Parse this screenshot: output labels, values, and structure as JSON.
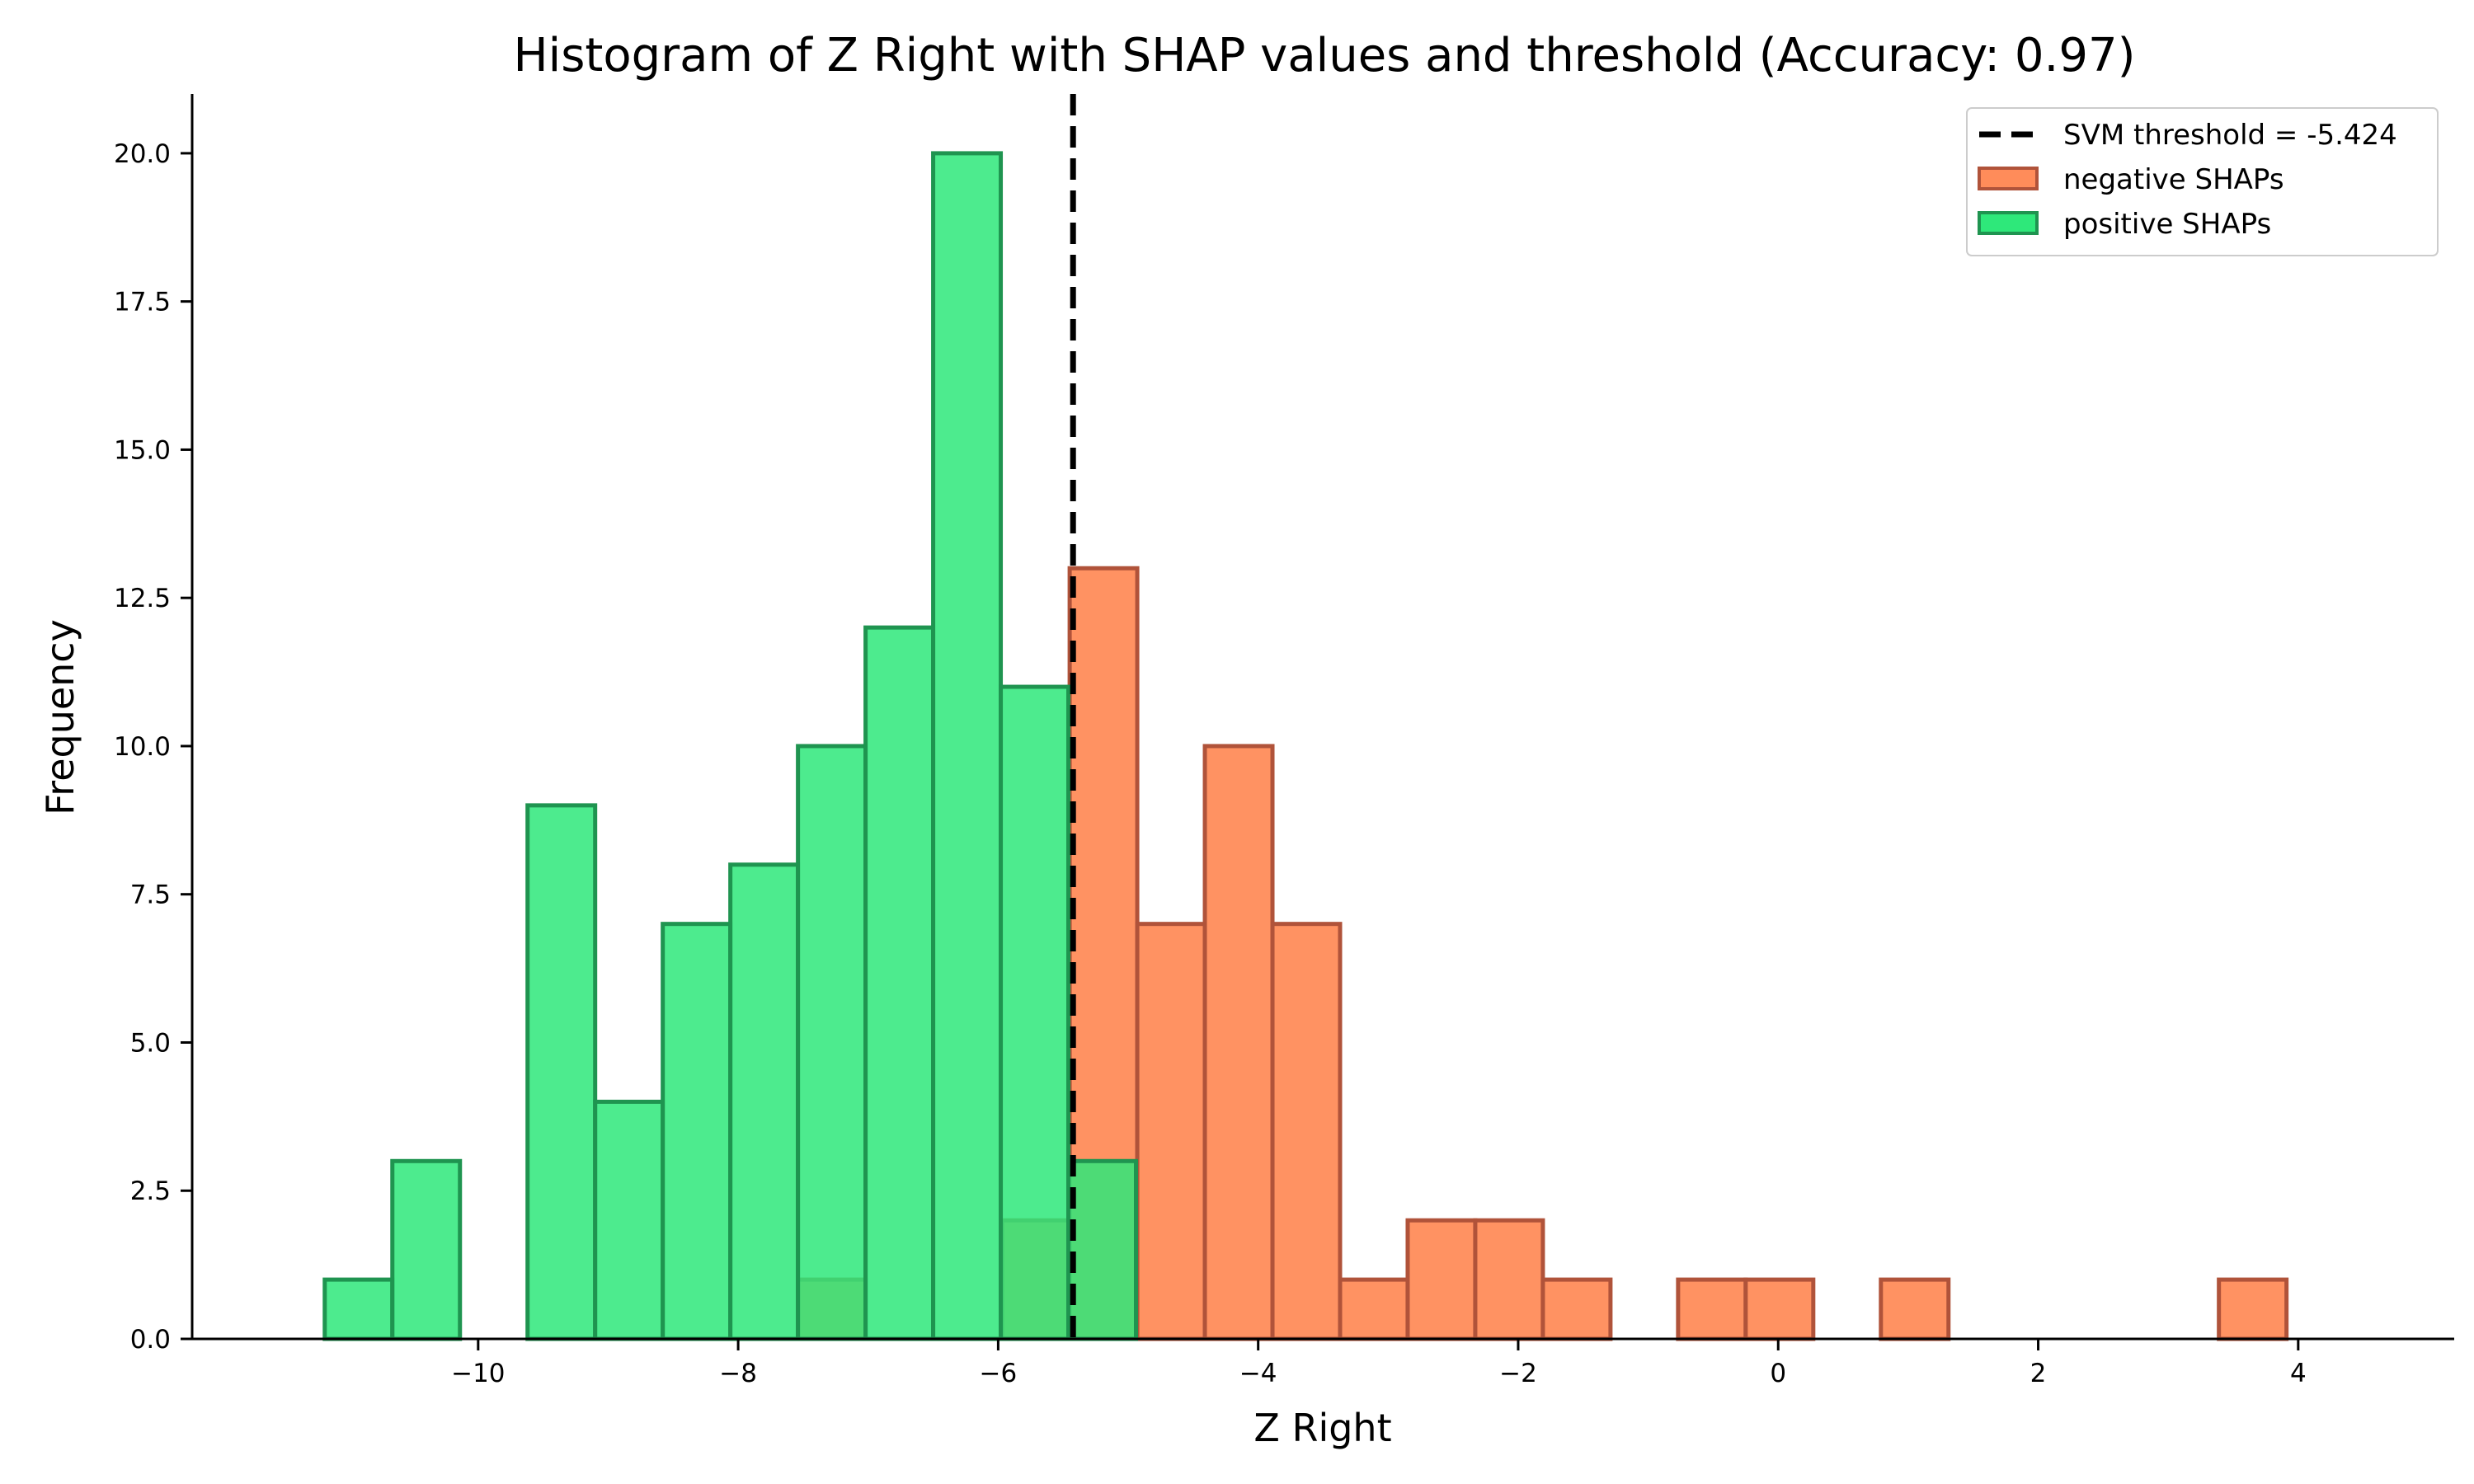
{
  "chart_data": {
    "type": "bar",
    "title": "Histogram of Z Right with SHAP values and threshold (Accuracy: 0.97)",
    "xlabel": "Z Right",
    "ylabel": "Frequency",
    "xlim": [
      -12.2,
      5.2
    ],
    "ylim": [
      0,
      21
    ],
    "x_ticks": [
      -10,
      -8,
      -6,
      -4,
      -2,
      0,
      2,
      4
    ],
    "x_tick_labels": [
      "−10",
      "−8",
      "−6",
      "−4",
      "−2",
      "0",
      "2",
      "4"
    ],
    "y_ticks": [
      0,
      2.5,
      5,
      7.5,
      10,
      12.5,
      15,
      17.5,
      20
    ],
    "y_tick_labels": [
      "0.0",
      "2.5",
      "5.0",
      "7.5",
      "10.0",
      "12.5",
      "15.0",
      "17.5",
      "20.0"
    ],
    "grid": false,
    "legend_position": "top-right",
    "threshold": {
      "value": -5.424,
      "label": "SVM threshold = -5.424",
      "color": "#000000",
      "style": "dashed"
    },
    "series": [
      {
        "name": "negative SHAPs",
        "fill": "#ff8c5a",
        "edge": "#b0533a",
        "bins": [
          {
            "x0": -7.54,
            "x1": -7.02,
            "count": 1
          },
          {
            "x0": -5.97,
            "x1": -5.45,
            "count": 2
          },
          {
            "x0": -5.45,
            "x1": -4.93,
            "count": 13
          },
          {
            "x0": -4.93,
            "x1": -4.41,
            "count": 7
          },
          {
            "x0": -4.41,
            "x1": -3.89,
            "count": 10
          },
          {
            "x0": -3.89,
            "x1": -3.37,
            "count": 7
          },
          {
            "x0": -3.37,
            "x1": -2.85,
            "count": 1
          },
          {
            "x0": -2.85,
            "x1": -2.33,
            "count": 2
          },
          {
            "x0": -2.33,
            "x1": -1.81,
            "count": 2
          },
          {
            "x0": -1.81,
            "x1": -1.29,
            "count": 1
          },
          {
            "x0": -0.77,
            "x1": -0.25,
            "count": 1
          },
          {
            "x0": -0.25,
            "x1": 0.27,
            "count": 1
          },
          {
            "x0": 0.79,
            "x1": 1.31,
            "count": 1
          },
          {
            "x0": 3.39,
            "x1": 3.91,
            "count": 1
          }
        ]
      },
      {
        "name": "positive SHAPs",
        "fill": "#2ee87a",
        "edge": "#1f9450",
        "bins": [
          {
            "x0": -11.18,
            "x1": -10.66,
            "count": 1
          },
          {
            "x0": -10.66,
            "x1": -10.14,
            "count": 3
          },
          {
            "x0": -9.62,
            "x1": -9.1,
            "count": 9
          },
          {
            "x0": -9.1,
            "x1": -8.58,
            "count": 4
          },
          {
            "x0": -8.58,
            "x1": -8.06,
            "count": 7
          },
          {
            "x0": -8.06,
            "x1": -7.54,
            "count": 8
          },
          {
            "x0": -7.54,
            "x1": -7.02,
            "count": 10
          },
          {
            "x0": -7.02,
            "x1": -6.5,
            "count": 12
          },
          {
            "x0": -6.5,
            "x1": -5.98,
            "count": 20
          },
          {
            "x0": -5.98,
            "x1": -5.46,
            "count": 11
          },
          {
            "x0": -5.46,
            "x1": -4.94,
            "count": 3
          }
        ]
      }
    ]
  }
}
